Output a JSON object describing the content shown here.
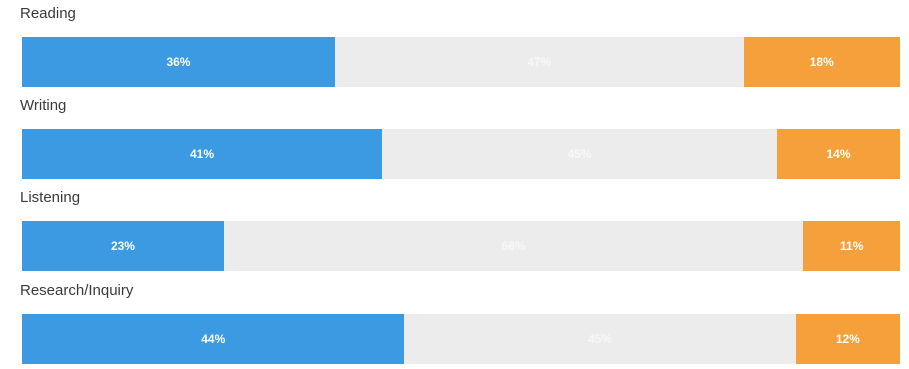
{
  "chart_data": {
    "type": "bar",
    "orientation": "horizontal",
    "stacked": true,
    "normalized": true,
    "categories": [
      "Reading",
      "Writing",
      "Listening",
      "Research/Inquiry"
    ],
    "series": [
      {
        "values": [
          36,
          41,
          23,
          44
        ],
        "color": "#3b9ae1",
        "labels": [
          "36%",
          "41%",
          "23%",
          "44%"
        ]
      },
      {
        "values": [
          47,
          45,
          66,
          45
        ],
        "color": "#ececec",
        "labels": [
          "47%",
          "45%",
          "66%",
          "45%"
        ]
      },
      {
        "values": [
          18,
          14,
          11,
          12
        ],
        "color": "#f5a03a",
        "labels": [
          "18%",
          "14%",
          "11%",
          "12%"
        ]
      }
    ],
    "grid": false,
    "legend": "none"
  }
}
